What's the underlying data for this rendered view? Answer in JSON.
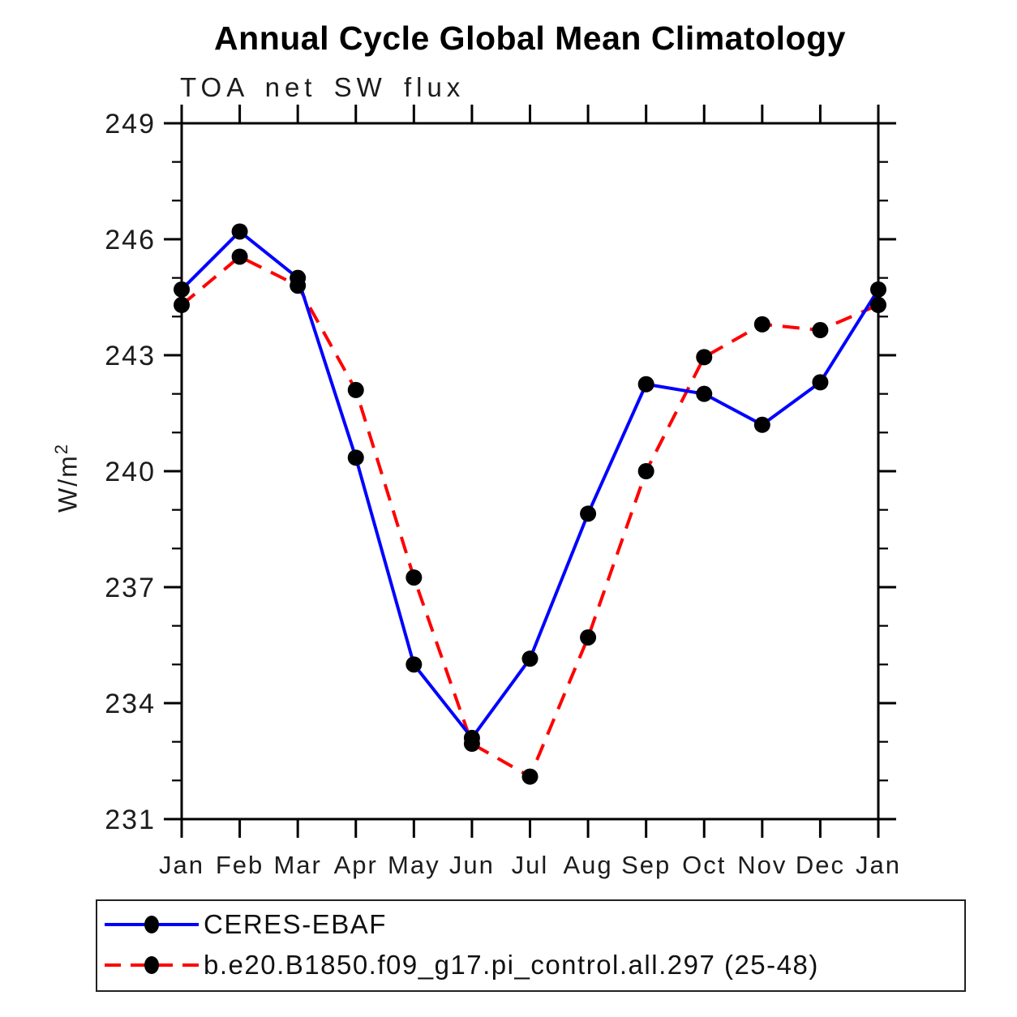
{
  "figure": {
    "background": "#ffffff"
  },
  "chart_data": {
    "type": "line",
    "title": "Annual Cycle Global Mean Climatology",
    "subtitle": "TOA net SW flux",
    "xlabel": "",
    "ylabel": "W/m2",
    "ylabel_display": {
      "base": "W/m",
      "sup": "2"
    },
    "x_categories": [
      "Jan",
      "Feb",
      "Mar",
      "Apr",
      "May",
      "Jun",
      "Jul",
      "Aug",
      "Sep",
      "Oct",
      "Nov",
      "Dec",
      "Jan"
    ],
    "ylim": [
      231,
      249
    ],
    "ytick_major_interval": 3,
    "ytick_minor_interval": 1,
    "ytick_labels": [
      "231",
      "234",
      "237",
      "240",
      "243",
      "246",
      "249"
    ],
    "grid": false,
    "legend_position": "bottom-box",
    "frame_color": "#000000",
    "marker_shape": "filled-circle",
    "series": [
      {
        "name": "CERES-EBAF",
        "color": "#0000ff",
        "line_style": "solid",
        "marker_color": "#000000",
        "values": [
          244.7,
          246.2,
          245.0,
          240.35,
          235.0,
          233.1,
          235.15,
          238.9,
          242.25,
          242.0,
          241.2,
          242.3,
          244.7
        ]
      },
      {
        "name": "b.e20.B1850.f09_g17.pi_control.all.297 (25-48)",
        "color": "#ff0000",
        "line_style": "dashed",
        "marker_color": "#000000",
        "values": [
          244.3,
          245.55,
          244.8,
          242.1,
          237.25,
          232.95,
          232.1,
          235.7,
          240.0,
          242.95,
          243.8,
          243.65,
          244.3
        ]
      }
    ]
  }
}
